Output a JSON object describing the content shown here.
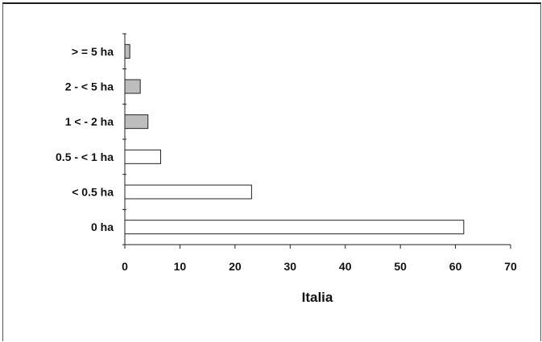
{
  "chart_data": {
    "type": "bar",
    "orientation": "horizontal",
    "categories": [
      "0 ha",
      "<  0.5 ha",
      "0.5  - <  1 ha",
      "1 < -  2 ha",
      "2 - < 5 ha",
      "> = 5 ha"
    ],
    "values": [
      61.5,
      23,
      6.5,
      4.2,
      2.8,
      0.9
    ],
    "xlabel": "Italia",
    "ylabel": "",
    "title": "",
    "xlim": [
      0,
      70
    ],
    "xticks": [
      0,
      10,
      20,
      30,
      40,
      50,
      60,
      70
    ],
    "grid": false,
    "legend": "none",
    "colors": {
      "large_bars": "#ffffff",
      "small_bars": "#bdbdbd",
      "stroke": "#222222"
    }
  }
}
